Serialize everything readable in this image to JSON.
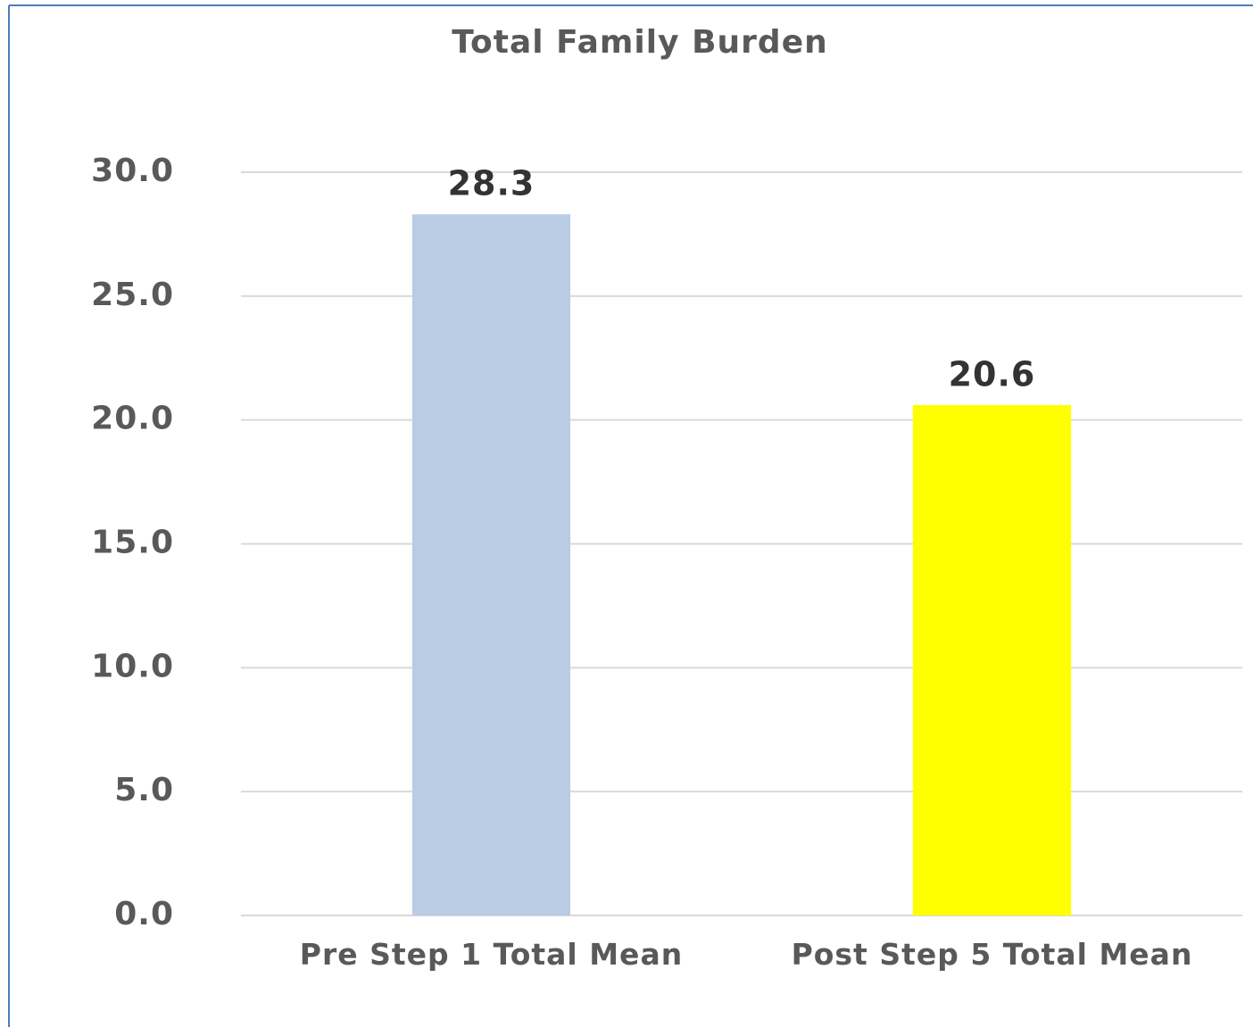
{
  "chart_data": {
    "type": "bar",
    "title": "Total Family Burden",
    "categories": [
      "Pre Step 1 Total Mean",
      "Post Step 5 Total Mean"
    ],
    "values": [
      28.3,
      20.6
    ],
    "colors": [
      "#b9cce4",
      "#ffff00"
    ],
    "ylim": [
      0,
      30
    ],
    "yticks": [
      {
        "value": 0,
        "label": "0.0"
      },
      {
        "value": 5,
        "label": "5.0"
      },
      {
        "value": 10,
        "label": "10.0"
      },
      {
        "value": 15,
        "label": "15.0"
      },
      {
        "value": 20,
        "label": "20.0"
      },
      {
        "value": 25,
        "label": "25.0"
      },
      {
        "value": 30,
        "label": "30.0"
      }
    ],
    "grid": true
  }
}
